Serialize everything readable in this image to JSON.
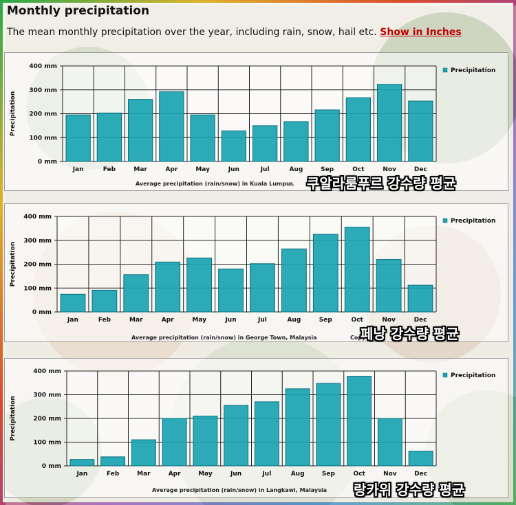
{
  "page": {
    "title": "Monthly precipitation",
    "subtitle": "The mean monthly precipitation over the year, including rain, snow, hail etc.",
    "link_label": "Show in Inches"
  },
  "colors": {
    "bar": "#1aa3b2",
    "bar_edge": "#0b6f7a",
    "link": "#c00000",
    "grid": "#222222"
  },
  "chart_data": [
    {
      "type": "bar",
      "categories": [
        "Jan",
        "Feb",
        "Mar",
        "Apr",
        "May",
        "Jun",
        "Jul",
        "Aug",
        "Sep",
        "Oct",
        "Nov",
        "Dec"
      ],
      "values": [
        195,
        203,
        260,
        292,
        195,
        128,
        150,
        167,
        216,
        267,
        323,
        253
      ],
      "ylim": [
        0,
        400
      ],
      "yticks": [
        "0 mm",
        "100 mm",
        "200 mm",
        "300 mm",
        "400 mm"
      ],
      "ylabel": "Precipitation",
      "legend": "Precipitation",
      "xlabel_visible": "Average precipitation (rain/snow) in Kuala Lumpur,",
      "overlay": "쿠알라룸푸르 강수량 평균"
    },
    {
      "type": "bar",
      "categories": [
        "Jan",
        "Feb",
        "Mar",
        "Apr",
        "May",
        "Jun",
        "Jul",
        "Aug",
        "Sep",
        "Oct",
        "Nov",
        "Dec"
      ],
      "values": [
        74,
        91,
        156,
        209,
        226,
        180,
        202,
        264,
        325,
        355,
        220,
        112
      ],
      "ylim": [
        0,
        400
      ],
      "yticks": [
        "0 mm",
        "100 mm",
        "200 mm",
        "300 mm",
        "400 mm"
      ],
      "ylabel": "Precipitation",
      "legend": "Precipitation",
      "xlabel_visible": "Average precipitation (rain/snow) in George Town, Malaysia",
      "copyright_visible": "Copy",
      "overlay": "페낭 강수량 평균"
    },
    {
      "type": "bar",
      "categories": [
        "Jan",
        "Feb",
        "Mar",
        "Apr",
        "May",
        "Jun",
        "Jul",
        "Aug",
        "Sep",
        "Oct",
        "Nov",
        "Dec"
      ],
      "values": [
        27,
        38,
        110,
        200,
        210,
        255,
        270,
        325,
        348,
        378,
        200,
        62
      ],
      "ylim": [
        0,
        400
      ],
      "yticks": [
        "0 mm",
        "100 mm",
        "200 mm",
        "300 mm",
        "400 mm"
      ],
      "ylabel": "Precipitation",
      "legend": "Precipitation",
      "xlabel_visible": "Average precipitation (rain/snow) in Langkawi, Malaysia",
      "overlay": "랑카위 강수량 평균"
    }
  ]
}
